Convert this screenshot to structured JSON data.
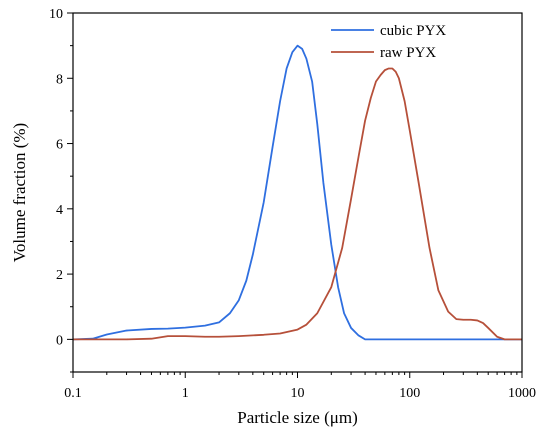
{
  "chart_data": {
    "type": "line",
    "title": "",
    "xlabel": "Particle size (μm)",
    "ylabel": "Volume fraction (%)",
    "xscale": "log",
    "xlim": [
      0.1,
      1000
    ],
    "ylim": [
      -1,
      10
    ],
    "x_ticks": [
      0.1,
      1,
      10,
      100,
      1000
    ],
    "x_tick_labels": [
      "0.1",
      "1",
      "10",
      "100",
      "1000"
    ],
    "y_ticks": [
      0,
      2,
      4,
      6,
      8,
      10
    ],
    "y_tick_labels": [
      "0",
      "2",
      "4",
      "6",
      "8",
      "10"
    ],
    "grid": false,
    "legend_position": "top-right",
    "series": [
      {
        "name": "cubic PYX",
        "color": "#2f6fe0",
        "x": [
          0.1,
          0.15,
          0.2,
          0.3,
          0.5,
          0.7,
          1.0,
          1.5,
          2.0,
          2.5,
          3.0,
          3.5,
          4.0,
          5.0,
          6.0,
          7.0,
          8.0,
          9.0,
          10.0,
          11.0,
          12.0,
          13.5,
          15.0,
          17.0,
          20.0,
          23.0,
          26.0,
          30.0,
          35.0,
          40.0,
          60.0,
          100.0,
          1000.0
        ],
        "y": [
          0.0,
          0.02,
          0.15,
          0.27,
          0.32,
          0.33,
          0.36,
          0.42,
          0.52,
          0.8,
          1.2,
          1.8,
          2.6,
          4.2,
          5.9,
          7.3,
          8.3,
          8.8,
          9.0,
          8.9,
          8.6,
          7.9,
          6.6,
          4.8,
          2.9,
          1.6,
          0.8,
          0.35,
          0.12,
          0.0,
          0.0,
          0.0,
          0.0
        ]
      },
      {
        "name": "raw PYX",
        "color": "#b6503a",
        "x": [
          0.1,
          0.3,
          0.5,
          0.7,
          1.0,
          1.5,
          2.0,
          3.0,
          5.0,
          7.0,
          10.0,
          12.0,
          15.0,
          20.0,
          25.0,
          30.0,
          35.0,
          40.0,
          45.0,
          50.0,
          55.0,
          60.0,
          65.0,
          70.0,
          75.0,
          80.0,
          90.0,
          100.0,
          120.0,
          150.0,
          180.0,
          220.0,
          260.0,
          300.0,
          350.0,
          400.0,
          450.0,
          500.0,
          600.0,
          700.0,
          1000.0
        ],
        "y": [
          0.0,
          0.0,
          0.02,
          0.1,
          0.1,
          0.08,
          0.08,
          0.1,
          0.14,
          0.18,
          0.3,
          0.45,
          0.8,
          1.6,
          2.8,
          4.3,
          5.6,
          6.7,
          7.4,
          7.9,
          8.1,
          8.25,
          8.3,
          8.3,
          8.2,
          8.0,
          7.3,
          6.4,
          4.8,
          2.8,
          1.5,
          0.85,
          0.62,
          0.6,
          0.6,
          0.58,
          0.5,
          0.35,
          0.08,
          0.0,
          0.0
        ]
      }
    ]
  }
}
